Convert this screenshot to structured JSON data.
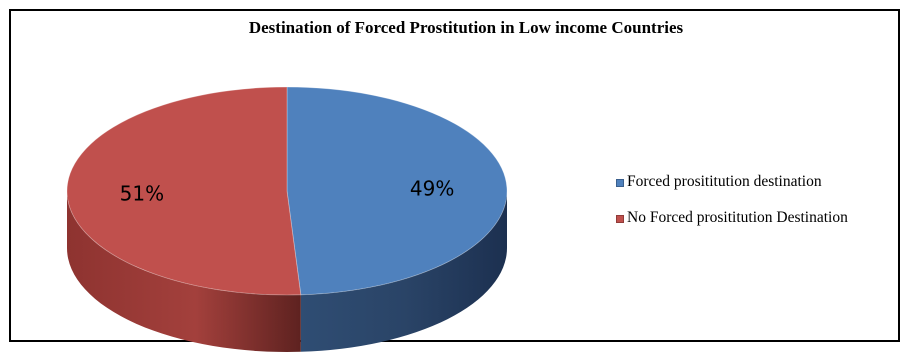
{
  "chart_data": {
    "type": "pie",
    "title": "Destination of Forced Prostitution in Low income Countries",
    "slices": [
      {
        "label": "Forced prosititution destination",
        "value": 49,
        "display": "49%",
        "color": "#4f81bd"
      },
      {
        "label": "No Forced prosititution Destination",
        "value": 51,
        "display": "51%",
        "color": "#c0504d"
      }
    ],
    "legend_position": "right",
    "style": "3d"
  }
}
